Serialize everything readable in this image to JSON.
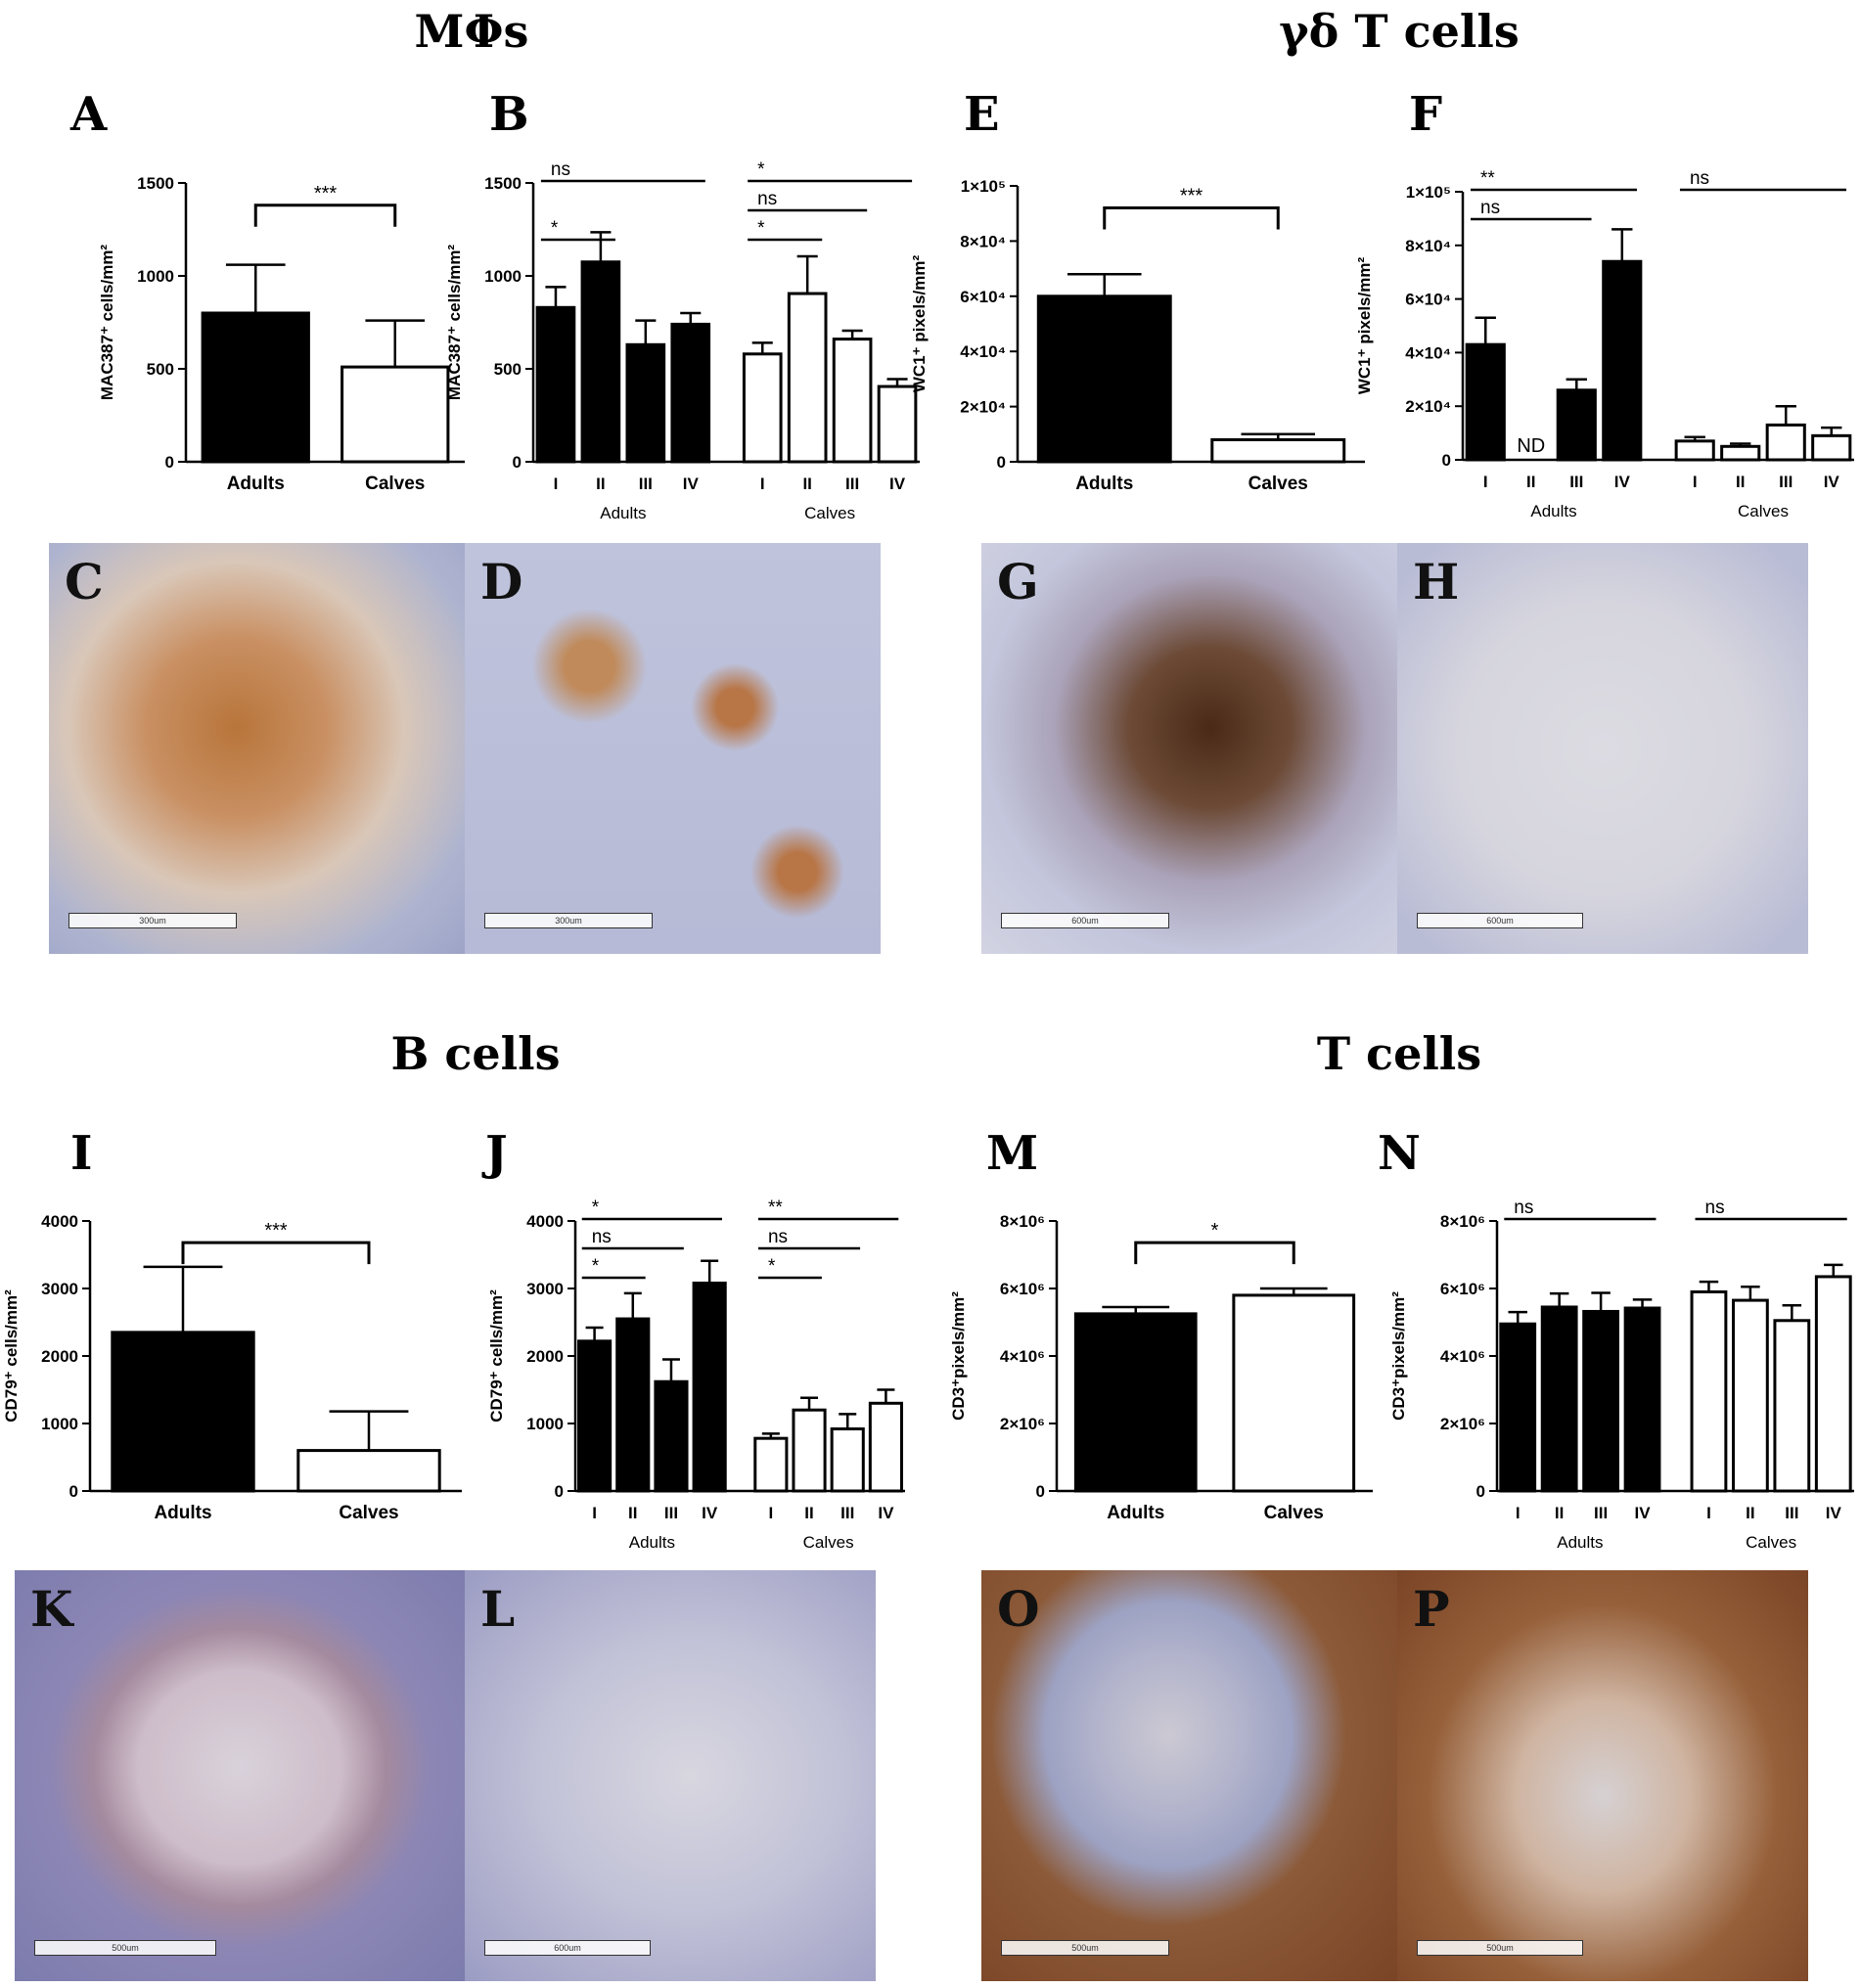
{
  "sections": [
    {
      "title": "MΦs"
    },
    {
      "title": "γδ T cells"
    },
    {
      "title": "B cells"
    },
    {
      "title": "T cells"
    }
  ],
  "chart_data": [
    {
      "panel": "A",
      "type": "bar",
      "ylabel": "MAC387⁺ cells/mm²",
      "ylim": [
        0,
        1500
      ],
      "yticks": [
        "0",
        "500",
        "1000",
        "1500"
      ],
      "categories": [
        "Adults",
        "Calves"
      ],
      "values": [
        800,
        510
      ],
      "errors": [
        260,
        250
      ],
      "fills": [
        "black",
        "white"
      ],
      "annotations": [
        {
          "text": "***",
          "from": 0,
          "to": 1,
          "bracket": true
        }
      ]
    },
    {
      "panel": "B",
      "type": "bar",
      "ylabel": "MAC387⁺ cells/mm²",
      "ylim": [
        0,
        1500
      ],
      "yticks": [
        "0",
        "500",
        "1000",
        "1500"
      ],
      "categories": [
        "I",
        "II",
        "III",
        "IV",
        "I",
        "II",
        "III",
        "IV"
      ],
      "groups": [
        "Adults",
        "Calves"
      ],
      "values": [
        830,
        1075,
        630,
        740,
        580,
        905,
        660,
        405
      ],
      "errors": [
        110,
        160,
        130,
        60,
        60,
        200,
        45,
        40
      ],
      "fills": [
        "black",
        "black",
        "black",
        "black",
        "white",
        "white",
        "white",
        "white"
      ],
      "annotations": [
        {
          "text": "ns",
          "from": 0,
          "to": 3
        },
        {
          "text": "*",
          "from": 0,
          "to": 1
        },
        {
          "text": "*",
          "from": 4,
          "to": 7
        },
        {
          "text": "ns",
          "from": 4,
          "to": 6
        },
        {
          "text": "*",
          "from": 4,
          "to": 5
        }
      ]
    },
    {
      "panel": "E",
      "type": "bar",
      "ylabel": "WC1⁺ pixels/mm²",
      "ylim": [
        0,
        100000
      ],
      "yticks": [
        "0",
        "2×10⁴",
        "4×10⁴",
        "6×10⁴",
        "8×10⁴",
        "1×10⁵"
      ],
      "categories": [
        "Adults",
        "Calves"
      ],
      "values": [
        60000,
        8000
      ],
      "errors": [
        8000,
        2000
      ],
      "fills": [
        "black",
        "white"
      ],
      "annotations": [
        {
          "text": "***",
          "from": 0,
          "to": 1,
          "bracket": true
        }
      ]
    },
    {
      "panel": "F",
      "type": "bar",
      "ylabel": "WC1⁺ pixels/mm²",
      "ylim": [
        0,
        100000
      ],
      "yticks": [
        "0",
        "2×10⁴",
        "4×10⁴",
        "6×10⁴",
        "8×10⁴",
        "1×10⁵"
      ],
      "categories": [
        "I",
        "II",
        "III",
        "IV",
        "I",
        "II",
        "III",
        "IV"
      ],
      "groups": [
        "Adults",
        "Calves"
      ],
      "values": [
        43000,
        0,
        26000,
        74000,
        7000,
        5000,
        13000,
        9000
      ],
      "errors": [
        10000,
        0,
        4000,
        12000,
        1500,
        1000,
        7000,
        3000
      ],
      "fills": [
        "black",
        "black",
        "black",
        "black",
        "white",
        "white",
        "white",
        "white"
      ],
      "nd": [
        {
          "index": 1,
          "text": "ND"
        }
      ],
      "annotations": [
        {
          "text": "**",
          "from": 0,
          "to": 3
        },
        {
          "text": "ns",
          "from": 0,
          "to": 2
        },
        {
          "text": "ns",
          "from": 4,
          "to": 7
        }
      ]
    },
    {
      "panel": "I",
      "type": "bar",
      "ylabel": "CD79⁺ cells/mm²",
      "ylim": [
        0,
        4000
      ],
      "yticks": [
        "0",
        "1000",
        "2000",
        "3000",
        "4000"
      ],
      "categories": [
        "Adults",
        "Calves"
      ],
      "values": [
        2350,
        600
      ],
      "errors": [
        970,
        580
      ],
      "fills": [
        "black",
        "white"
      ],
      "annotations": [
        {
          "text": "***",
          "from": 0,
          "to": 1,
          "bracket": true
        }
      ]
    },
    {
      "panel": "J",
      "type": "bar",
      "ylabel": "CD79⁺ cells/mm²",
      "ylim": [
        0,
        4000
      ],
      "yticks": [
        "0",
        "1000",
        "2000",
        "3000",
        "4000"
      ],
      "categories": [
        "I",
        "II",
        "III",
        "IV",
        "I",
        "II",
        "III",
        "IV"
      ],
      "groups": [
        "Adults",
        "Calves"
      ],
      "values": [
        2220,
        2550,
        1620,
        3080,
        780,
        1200,
        920,
        1300
      ],
      "errors": [
        200,
        380,
        330,
        330,
        70,
        180,
        220,
        200
      ],
      "fills": [
        "black",
        "black",
        "black",
        "black",
        "white",
        "white",
        "white",
        "white"
      ],
      "annotations": [
        {
          "text": "*",
          "from": 0,
          "to": 3
        },
        {
          "text": "ns",
          "from": 0,
          "to": 2
        },
        {
          "text": "*",
          "from": 0,
          "to": 1
        },
        {
          "text": "**",
          "from": 4,
          "to": 7
        },
        {
          "text": "ns",
          "from": 4,
          "to": 6
        },
        {
          "text": "*",
          "from": 4,
          "to": 5
        }
      ]
    },
    {
      "panel": "M",
      "type": "bar",
      "ylabel": "CD3⁺pixels/mm²",
      "ylim": [
        0,
        8000000
      ],
      "yticks": [
        "0",
        "2×10⁶",
        "4×10⁶",
        "6×10⁶",
        "8×10⁶"
      ],
      "categories": [
        "Adults",
        "Calves"
      ],
      "values": [
        5250000,
        5800000
      ],
      "errors": [
        200000,
        200000
      ],
      "fills": [
        "black",
        "white"
      ],
      "annotations": [
        {
          "text": "*",
          "from": 0,
          "to": 1,
          "bracket": true
        }
      ]
    },
    {
      "panel": "N",
      "type": "bar",
      "ylabel": "CD3⁺pixels/mm²",
      "ylim": [
        0,
        8000000
      ],
      "yticks": [
        "0",
        "2×10⁶",
        "4×10⁶",
        "6×10⁶",
        "8×10⁶"
      ],
      "categories": [
        "I",
        "II",
        "III",
        "IV",
        "I",
        "II",
        "III",
        "IV"
      ],
      "groups": [
        "Adults",
        "Calves"
      ],
      "values": [
        4950000,
        5450000,
        5320000,
        5420000,
        5900000,
        5650000,
        5050000,
        6350000
      ],
      "errors": [
        350000,
        400000,
        550000,
        250000,
        300000,
        400000,
        450000,
        350000
      ],
      "fills": [
        "black",
        "black",
        "black",
        "black",
        "white",
        "white",
        "white",
        "white"
      ],
      "annotations": [
        {
          "text": "ns",
          "from": 0,
          "to": 3
        },
        {
          "text": "ns",
          "from": 4,
          "to": 7
        }
      ]
    }
  ],
  "micrographs": [
    {
      "label": "C",
      "stain": "brown-heavy",
      "scale": "300um"
    },
    {
      "label": "D",
      "stain": "brown-spots",
      "scale": "300um"
    },
    {
      "label": "G",
      "stain": "dark-brown-patch",
      "scale": "600um"
    },
    {
      "label": "H",
      "stain": "pale",
      "scale": "600um"
    },
    {
      "label": "K",
      "stain": "purple-ring",
      "scale": "500um"
    },
    {
      "label": "L",
      "stain": "pale-purple",
      "scale": "600um"
    },
    {
      "label": "O",
      "stain": "brown-ring",
      "scale": "500um"
    },
    {
      "label": "P",
      "stain": "brown-diffuse",
      "scale": "500um"
    }
  ]
}
